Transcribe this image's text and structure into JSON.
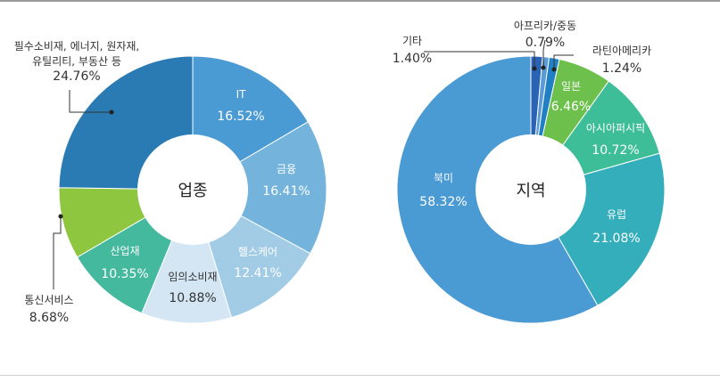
{
  "chart_data": [
    {
      "type": "pie",
      "title": "업종",
      "colors": [
        "#4a9ad4",
        "#74b4dc",
        "#a2cbe6",
        "#d4e5f3",
        "#44b99e",
        "#8ec63f",
        "#2a7bb4"
      ],
      "slices": [
        {
          "label": "IT",
          "value": 16.52,
          "value_text": "16.52%"
        },
        {
          "label": "금융",
          "value": 16.41,
          "value_text": "16.41%"
        },
        {
          "label": "헬스케어",
          "value": 12.41,
          "value_text": "12.41%"
        },
        {
          "label": "임의소비재",
          "value": 10.88,
          "value_text": "10.88%"
        },
        {
          "label": "산업재",
          "value": 10.35,
          "value_text": "10.35%"
        },
        {
          "label": "통신서비스",
          "value": 8.68,
          "value_text": "8.68%"
        },
        {
          "label": "필수소비재, 에너지, 원자재,\n유틸리티, 부동산 등",
          "value": 24.76,
          "value_text": "24.76%"
        }
      ]
    },
    {
      "type": "pie",
      "title": "지역",
      "colors": [
        "#2a62b4",
        "#5a9bd5",
        "#2180c4",
        "#6dc04b",
        "#3dbd98",
        "#34aebb",
        "#4a9ad4"
      ],
      "slices": [
        {
          "label": "기타",
          "value": 1.4,
          "value_text": "1.40%"
        },
        {
          "label": "아프리카/중동",
          "value": 0.79,
          "value_text": "0.79%"
        },
        {
          "label": "라틴아메리카",
          "value": 1.24,
          "value_text": "1.24%"
        },
        {
          "label": "일본",
          "value": 6.46,
          "value_text": "6.46%"
        },
        {
          "label": "아시아퍼시픽",
          "value": 10.72,
          "value_text": "10.72%"
        },
        {
          "label": "유럽",
          "value": 21.08,
          "value_text": "21.08%"
        },
        {
          "label": "북미",
          "value": 58.32,
          "value_text": "58.32%"
        }
      ]
    }
  ]
}
